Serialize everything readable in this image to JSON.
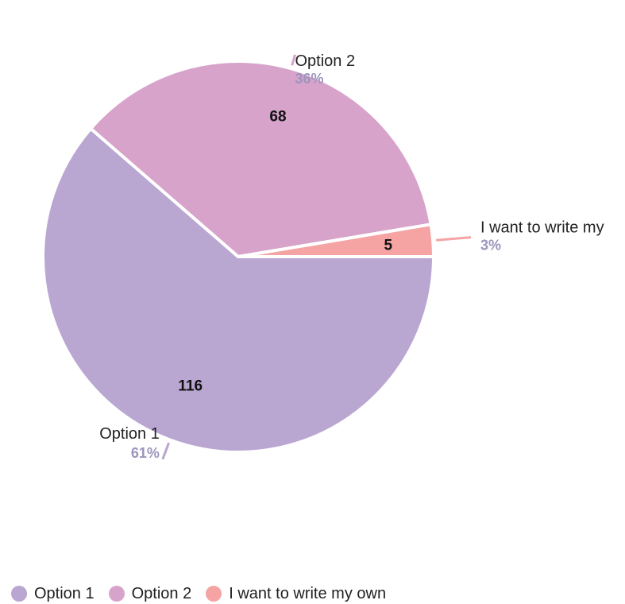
{
  "chart_data": {
    "type": "pie",
    "slices": [
      {
        "label": "Option 1",
        "value": 116,
        "percent": "61%",
        "color": "#B9A6D1"
      },
      {
        "label": "Option 2",
        "value": 68,
        "percent": "36%",
        "color": "#D7A3CB"
      },
      {
        "label": "I want to write my own",
        "value": 5,
        "percent": "3%",
        "color": "#F5A3A3"
      }
    ],
    "callout_labels": [
      "Option 1",
      "Option 2",
      "I want to write my"
    ],
    "percent_color": "#9C95BC",
    "legend_position": "bottom-left"
  }
}
